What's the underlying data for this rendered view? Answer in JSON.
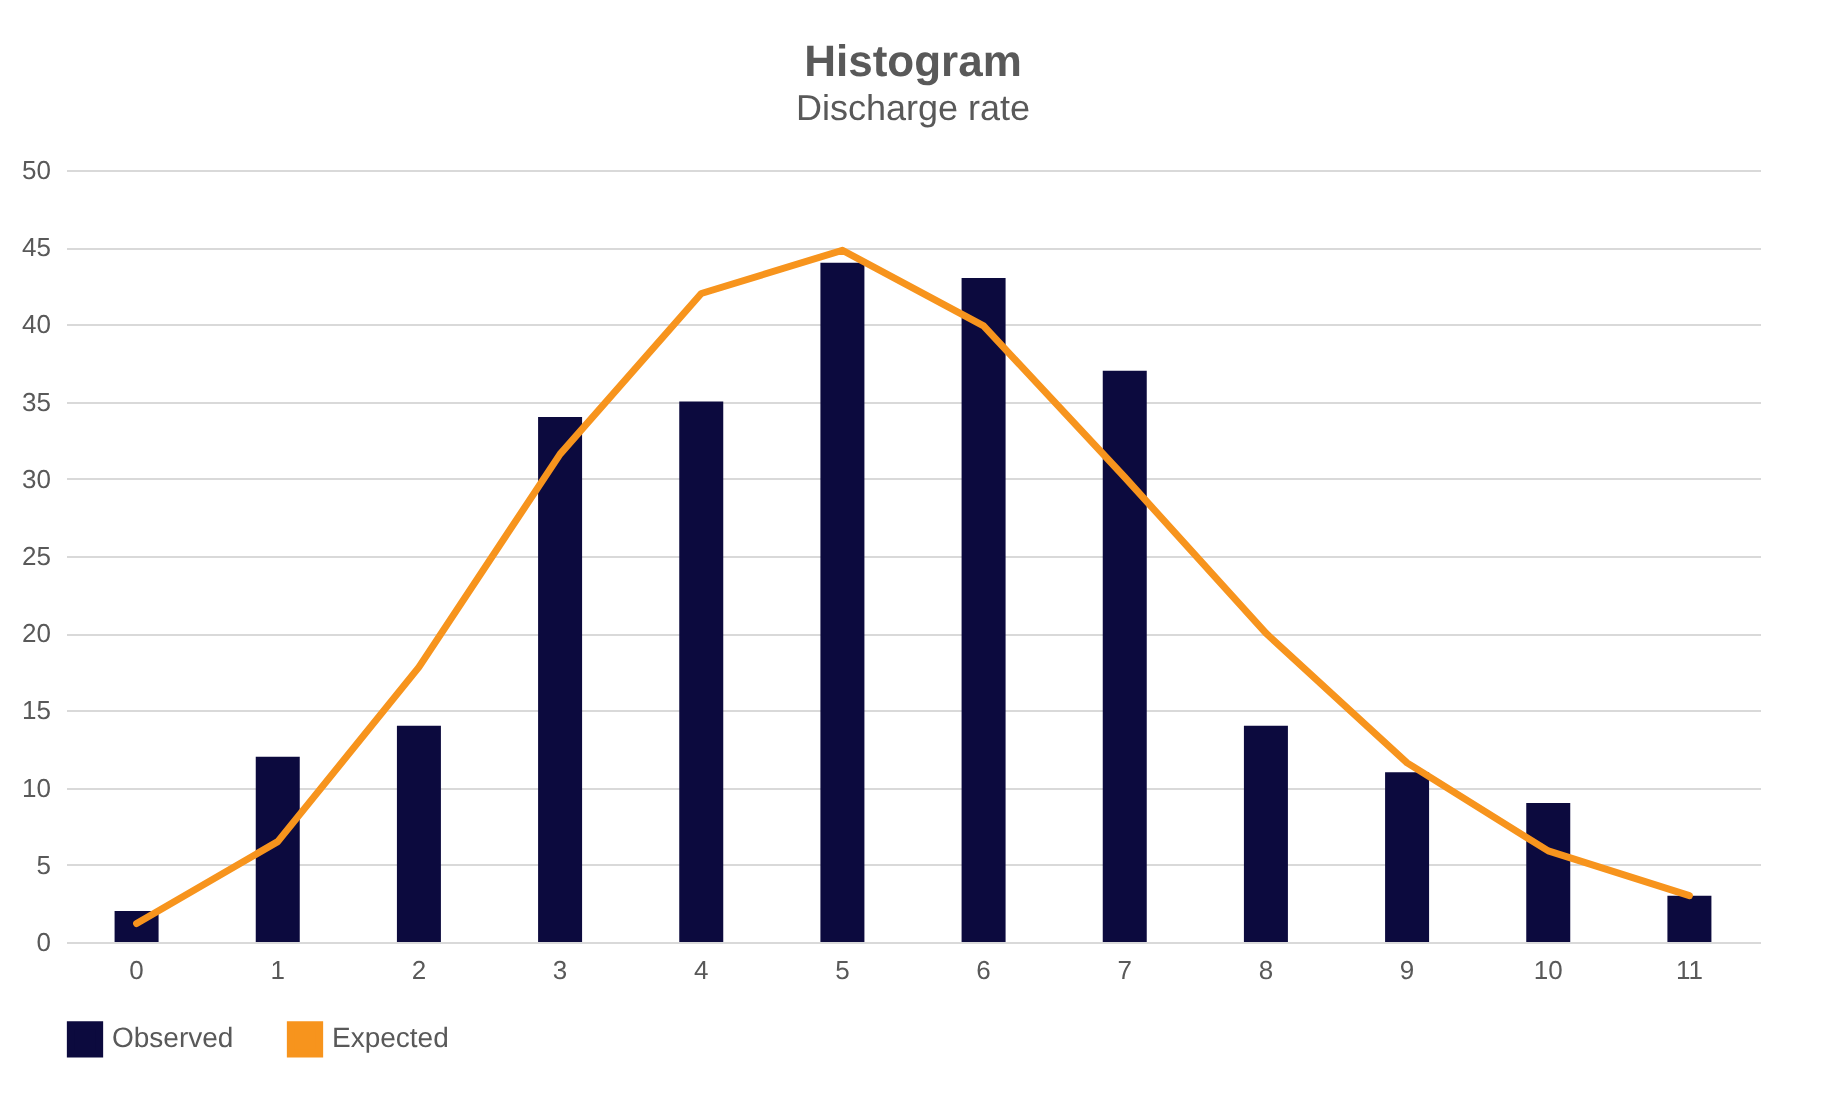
{
  "chart_data": {
    "type": "bar",
    "title": "Histogram",
    "subtitle": "Discharge rate",
    "categories": [
      "0",
      "1",
      "2",
      "3",
      "4",
      "5",
      "6",
      "7",
      "8",
      "9",
      "10",
      "11"
    ],
    "series": [
      {
        "name": "Observed",
        "type": "bar",
        "color": "#0c0a3e",
        "values": [
          2,
          12,
          14,
          34,
          35,
          44,
          43,
          37,
          14,
          11,
          9,
          3
        ]
      },
      {
        "name": "Expected",
        "type": "line",
        "color": "#f7941d",
        "values": [
          1.2,
          6.5,
          17.8,
          31.6,
          42,
          44.8,
          39.9,
          30.1,
          20,
          11.6,
          5.9,
          3
        ]
      }
    ],
    "ylim": [
      0,
      50
    ],
    "yticks": [
      0,
      5,
      10,
      15,
      20,
      25,
      30,
      35,
      40,
      45,
      50
    ],
    "grid": "y",
    "legend": "bottom"
  }
}
